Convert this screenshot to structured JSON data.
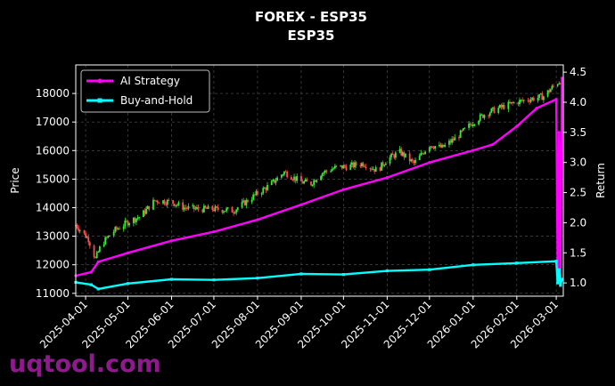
{
  "chart_data": {
    "type": "line",
    "title": "FOREX - ESP35",
    "subtitle": "ESP35",
    "ylabel": "Price",
    "y2label": "Return",
    "ylim": [
      10900,
      19000
    ],
    "y2lim": [
      0.78,
      4.62
    ],
    "xlim": [
      "2025-03-25",
      "2026-03-06"
    ],
    "grid": true,
    "legend_position": "upper-left",
    "yticks": [
      "11000",
      "12000",
      "13000",
      "14000",
      "15000",
      "16000",
      "17000",
      "18000"
    ],
    "y2ticks": [
      "1.0",
      "1.5",
      "2.0",
      "2.5",
      "3.0",
      "3.5",
      "4.0",
      "4.5"
    ],
    "xticks": [
      "2025-04-01",
      "2025-05-01",
      "2025-06-01",
      "2025-07-01",
      "2025-08-01",
      "2025-09-01",
      "2025-10-01",
      "2025-11-01",
      "2025-12-01",
      "2026-01-01",
      "2026-02-01",
      "2026-03-01"
    ],
    "colors": {
      "up": "#33ee33",
      "down": "#ff4d4d",
      "ai": "#ff00ff",
      "bh": "#00ffff",
      "background": "#000000"
    },
    "price_series": {
      "name": "ESP35",
      "x": [
        "2025-03-25",
        "2025-04-03",
        "2025-04-08",
        "2025-04-12",
        "2025-04-20",
        "2025-05-01",
        "2025-05-10",
        "2025-05-20",
        "2025-06-01",
        "2025-06-10",
        "2025-06-20",
        "2025-07-01",
        "2025-07-15",
        "2025-07-25",
        "2025-08-01",
        "2025-08-10",
        "2025-08-20",
        "2025-09-01",
        "2025-09-08",
        "2025-09-15",
        "2025-09-25",
        "2025-10-05",
        "2025-10-15",
        "2025-10-25",
        "2025-11-01",
        "2025-11-10",
        "2025-11-20",
        "2025-12-01",
        "2025-12-10",
        "2025-12-20",
        "2026-01-01",
        "2026-01-10",
        "2026-01-20",
        "2026-02-01",
        "2026-02-10",
        "2026-02-20",
        "2026-03-01",
        "2026-03-04"
      ],
      "close": [
        13400,
        12900,
        12200,
        12700,
        13150,
        13500,
        13700,
        14250,
        14200,
        14000,
        13950,
        13950,
        13900,
        14250,
        14500,
        14800,
        15250,
        14900,
        14850,
        15200,
        15400,
        15450,
        15550,
        15300,
        15700,
        15950,
        15550,
        16200,
        16100,
        16450,
        17000,
        17300,
        17500,
        17700,
        17800,
        17900,
        18350,
        18450
      ]
    },
    "series": [
      {
        "name": "AI Strategy",
        "x": [
          "2025-03-25",
          "2025-04-05",
          "2025-04-10",
          "2025-05-01",
          "2025-06-01",
          "2025-07-01",
          "2025-08-01",
          "2025-09-01",
          "2025-10-01",
          "2025-11-01",
          "2025-12-01",
          "2026-01-01",
          "2026-01-15",
          "2026-02-01",
          "2026-02-15",
          "2026-03-01",
          "2026-03-02",
          "2026-03-03",
          "2026-03-04",
          "2026-03-05"
        ],
        "values": [
          1.12,
          1.18,
          1.35,
          1.5,
          1.7,
          1.85,
          2.05,
          2.3,
          2.55,
          2.75,
          3.0,
          3.2,
          3.3,
          3.6,
          3.9,
          4.05,
          1.15,
          3.5,
          1.0,
          4.4
        ]
      },
      {
        "name": "Buy-and-Hold",
        "x": [
          "2025-03-25",
          "2025-04-05",
          "2025-04-10",
          "2025-05-01",
          "2025-06-01",
          "2025-07-01",
          "2025-08-01",
          "2025-09-01",
          "2025-10-01",
          "2025-11-01",
          "2025-12-01",
          "2026-01-01",
          "2026-02-01",
          "2026-03-01",
          "2026-03-02",
          "2026-03-03",
          "2026-03-04",
          "2026-03-05"
        ],
        "values": [
          1.01,
          0.97,
          0.9,
          0.99,
          1.06,
          1.05,
          1.08,
          1.15,
          1.14,
          1.2,
          1.22,
          1.3,
          1.33,
          1.36,
          1.0,
          1.22,
          0.96,
          1.06
        ]
      }
    ]
  },
  "watermark": "uqtool.com"
}
